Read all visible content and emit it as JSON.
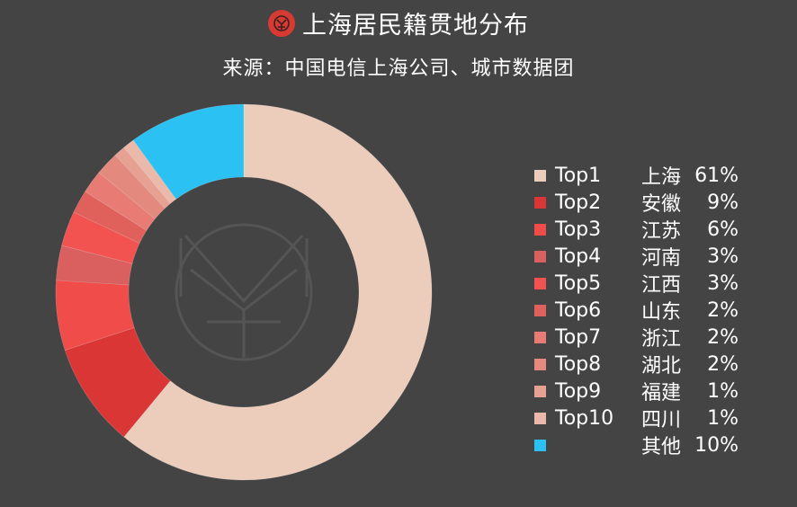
{
  "header": {
    "title": "上海居民籍贯地分布",
    "subtitle": "来源：中国电信上海公司、城市数据团"
  },
  "chart_data": {
    "type": "pie",
    "variant": "donut",
    "title": "上海居民籍贯地分布",
    "subtitle": "来源：中国电信上海公司、城市数据团",
    "legend_position": "right",
    "slices": [
      {
        "rank": "Top1",
        "label": "上海",
        "value": 61,
        "display": "61%",
        "color": "#ecccbb"
      },
      {
        "rank": "Top2",
        "label": "安徽",
        "value": 9,
        "display": "9%",
        "color": "#db3636"
      },
      {
        "rank": "Top3",
        "label": "江苏",
        "value": 6,
        "display": "6%",
        "color": "#f04c4a"
      },
      {
        "rank": "Top4",
        "label": "河南",
        "value": 3,
        "display": "3%",
        "color": "#d9605e"
      },
      {
        "rank": "Top5",
        "label": "江西",
        "value": 3,
        "display": "3%",
        "color": "#f25350"
      },
      {
        "rank": "Top6",
        "label": "山东",
        "value": 2,
        "display": "2%",
        "color": "#e0605c"
      },
      {
        "rank": "Top7",
        "label": "浙江",
        "value": 2,
        "display": "2%",
        "color": "#e87c74"
      },
      {
        "rank": "Top8",
        "label": "湖北",
        "value": 2,
        "display": "2%",
        "color": "#e3897e"
      },
      {
        "rank": "Top9",
        "label": "福建",
        "value": 1,
        "display": "1%",
        "color": "#e7a193"
      },
      {
        "rank": "Top10",
        "label": "四川",
        "value": 1,
        "display": "1%",
        "color": "#ebb9aa"
      },
      {
        "rank": "",
        "label": "其他",
        "value": 10,
        "display": "10%",
        "color": "#2cc1f3"
      }
    ]
  }
}
